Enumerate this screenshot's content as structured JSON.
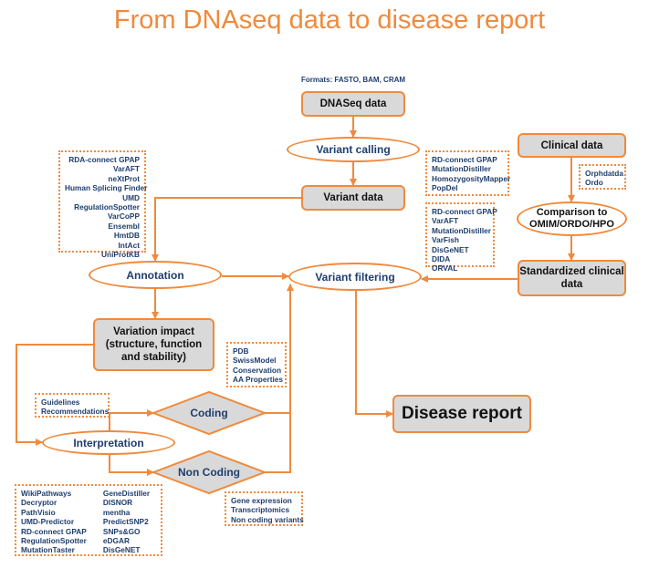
{
  "title": "From DNAseq data to disease report",
  "formats_label": "Formats: FASTO, BAM, CRAM",
  "nodes": {
    "dnaseq": "DNASeq data",
    "variant_calling": "Variant calling",
    "variant_data": "Variant data",
    "clinical_data": "Clinical data",
    "comparison": "Comparison to OMIM/ORDO/HPO",
    "standardized": "Standardized clinical data",
    "annotation": "Annotation",
    "variant_filtering": "Variant filtering",
    "variation_impact": "Variation impact (structure, function and stability)",
    "coding": "Coding",
    "interpretation": "Interpretation",
    "non_coding": "Non Coding",
    "disease_report": "Disease report"
  },
  "tools": {
    "annotation_tools": [
      "RDA-connect GPAP",
      "VarAFT",
      "neXtProt",
      "Human Splicing Finder",
      "UMD",
      "RegulationSpotter",
      "VarCoPP",
      "Ensembl",
      "HmtDB",
      "IntAct",
      "UniProtKB"
    ],
    "calling_tools": [
      "RD-connect GPAP",
      "MutationDistiller",
      "HomozygosityMapper",
      "PopDel"
    ],
    "clinical_tools": [
      "Orphdatda",
      "Ordo"
    ],
    "filtering_tools": [
      "RD-connect GPAP",
      "VarAFT",
      "MutationDistiller",
      "VarFish",
      "DisGeNET",
      "DIDA",
      "ORVAL"
    ],
    "impact_tools": [
      "PDB",
      "SwissModel",
      "Conservation",
      "AA Properties"
    ],
    "interpretation_tools": [
      "Guidelines",
      "Recommendations"
    ],
    "noncoding_left_col1": [
      "WikiPathways",
      "Decryptor",
      "PathVisio",
      "UMD-Predictor",
      "RD-connect GPAP",
      "RegulationSpotter",
      "MutationTaster"
    ],
    "noncoding_left_col2": [
      "GeneDistiller",
      "DISNOR",
      "mentha",
      "PredictSNP2",
      "SNPs&GO",
      "eDGAR",
      "DisGeNET"
    ],
    "noncoding_tools": [
      "Gene expression",
      "Transcriptomics",
      "Non coding variants"
    ]
  },
  "colors": {
    "accent": "#f08a3c",
    "box_fill": "#d9d9d9",
    "text_blue": "#1f3e6e"
  }
}
